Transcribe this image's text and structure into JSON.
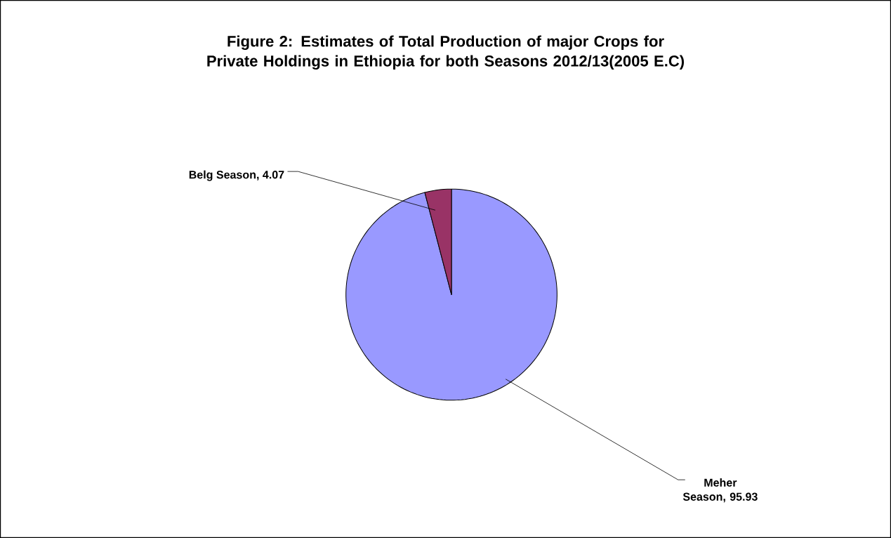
{
  "chart_data": {
    "type": "pie",
    "title": "Figure 2: Estimates of Total Production of major Crops for Private Holdings in Ethiopia for both Seasons 2012/13(2005 E.C)",
    "categories": [
      "Meher Season",
      "Belg Season"
    ],
    "values": [
      95.93,
      4.07
    ],
    "colors": [
      "#9999ff",
      "#993366"
    ],
    "value_labels": [
      ", 95.93",
      ", 4.07"
    ]
  }
}
